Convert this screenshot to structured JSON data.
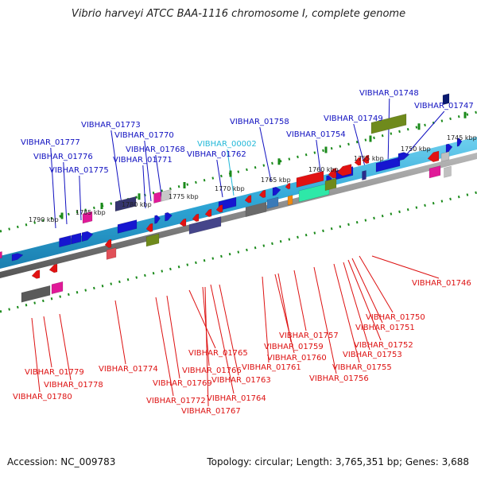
{
  "title": "Vibrio harveyi ATCC BAA-1116 chromosome I, complete genome",
  "footer": {
    "accession": "Accession: NC_009783",
    "summary": "Topology: circular; Length: 3,765,351 bp; Genes: 3,688"
  },
  "colors": {
    "forward_label": "#1010c0",
    "reverse_label": "#dd1111",
    "highlight_label": "#22b8d8",
    "backbone": "#36b0dc",
    "backbone_dark": "#7c7c7c",
    "tick": "#1a8a1a"
  },
  "scale_ticks": [
    "1790 kbp",
    "1785 kbp",
    "1780 kbp",
    "1775 kbp",
    "1770 kbp",
    "1765 kbp",
    "1760 kbp",
    "1755 kbp",
    "1750 kbp",
    "1745 kbp"
  ],
  "forward_labels": [
    "VIBHAR_01777",
    "VIBHAR_01776",
    "VIBHAR_01775",
    "VIBHAR_01773",
    "VIBHAR_01770",
    "VIBHAR_01768",
    "VIBHAR_01771",
    "VIBHAR_00002",
    "VIBHAR_01762",
    "VIBHAR_01758",
    "VIBHAR_01754",
    "VIBHAR_01749",
    "VIBHAR_01748",
    "VIBHAR_01747"
  ],
  "reverse_labels": [
    "VIBHAR_01746",
    "VIBHAR_01750",
    "VIBHAR_01751",
    "VIBHAR_01752",
    "VIBHAR_01753",
    "VIBHAR_01755",
    "VIBHAR_01756",
    "VIBHAR_01757",
    "VIBHAR_01759",
    "VIBHAR_01760",
    "VIBHAR_01761",
    "VIBHAR_01765",
    "VIBHAR_01763",
    "VIBHAR_01766",
    "VIBHAR_01764",
    "VIBHAR_01769",
    "VIBHAR_01772",
    "VIBHAR_01767",
    "VIBHAR_01774",
    "VIBHAR_01779",
    "VIBHAR_01778",
    "VIBHAR_01780"
  ]
}
